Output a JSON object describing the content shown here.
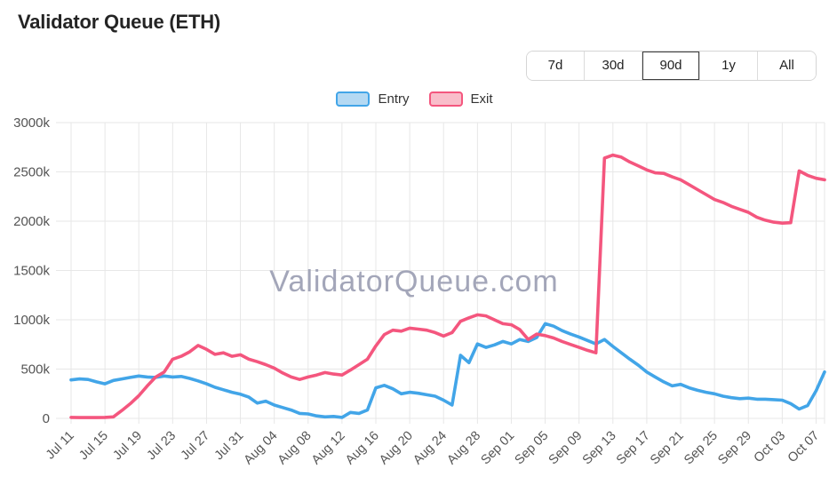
{
  "header": {
    "title": "Validator Queue (ETH)"
  },
  "time_range": {
    "options": [
      "7d",
      "30d",
      "90d",
      "1y",
      "All"
    ],
    "selected": "90d"
  },
  "watermark": "ValidatorQueue.com",
  "colors": {
    "entry_line": "#42a5e8",
    "entry_fill": "#b4d9f3",
    "exit_line": "#f4567e",
    "exit_fill": "#f9bdca",
    "grid": "#e7e7e7",
    "axis_text": "#545454",
    "watermark_text": "#9a9db2"
  },
  "chart_data": {
    "type": "line",
    "title": "Validator Queue (ETH)",
    "xlabel": "",
    "ylabel": "",
    "grid": true,
    "legend_position": "top-center",
    "x": {
      "start": "Jul 11",
      "end": "Oct 08",
      "step": "1 day",
      "tick_every": 4,
      "tick_labels": [
        "Jul 11",
        "Jul 15",
        "Jul 19",
        "Jul 23",
        "Jul 27",
        "Jul 31",
        "Aug 04",
        "Aug 08",
        "Aug 12",
        "Aug 16",
        "Aug 20",
        "Aug 24",
        "Aug 28",
        "Sep 01",
        "Sep 05",
        "Sep 09",
        "Sep 13",
        "Sep 17",
        "Sep 21",
        "Sep 25",
        "Sep 29",
        "Oct 03",
        "Oct 07"
      ]
    },
    "y": {
      "min_k": 0,
      "max_k": 3000,
      "ticks_k": [
        0,
        500,
        1000,
        1500,
        2000,
        2500,
        3000
      ],
      "tick_labels": [
        "0",
        "500k",
        "1000k",
        "1500k",
        "2000k",
        "2500k",
        "3000k"
      ]
    },
    "values_unit": "thousands of ETH",
    "series": [
      {
        "name": "Entry",
        "color": "#42a5e8",
        "fill": "#b4d9f3",
        "values_k": [
          390,
          400,
          395,
          370,
          350,
          385,
          400,
          415,
          430,
          420,
          415,
          430,
          420,
          425,
          405,
          380,
          350,
          315,
          290,
          265,
          245,
          215,
          155,
          175,
          135,
          110,
          85,
          50,
          45,
          25,
          15,
          20,
          10,
          60,
          50,
          85,
          310,
          335,
          300,
          250,
          265,
          255,
          240,
          225,
          185,
          135,
          640,
          565,
          755,
          720,
          745,
          780,
          755,
          800,
          780,
          820,
          960,
          935,
          890,
          855,
          825,
          790,
          755,
          800,
          730,
          665,
          600,
          540,
          470,
          420,
          370,
          330,
          345,
          310,
          285,
          265,
          250,
          225,
          210,
          200,
          205,
          195,
          195,
          190,
          185,
          150,
          95,
          130,
          280,
          470
        ]
      },
      {
        "name": "Exit",
        "color": "#f4567e",
        "fill": "#f9bdca",
        "values_k": [
          10,
          8,
          8,
          8,
          10,
          15,
          80,
          150,
          230,
          330,
          420,
          470,
          600,
          630,
          675,
          740,
          700,
          650,
          665,
          630,
          645,
          600,
          575,
          545,
          510,
          460,
          420,
          395,
          420,
          440,
          465,
          450,
          440,
          490,
          545,
          600,
          735,
          850,
          895,
          885,
          915,
          905,
          895,
          870,
          835,
          870,
          985,
          1020,
          1050,
          1040,
          1000,
          960,
          950,
          900,
          800,
          855,
          840,
          815,
          780,
          750,
          720,
          690,
          665,
          2640,
          2670,
          2650,
          2600,
          2560,
          2520,
          2490,
          2485,
          2450,
          2420,
          2370,
          2320,
          2270,
          2220,
          2190,
          2150,
          2120,
          2090,
          2040,
          2010,
          1990,
          1980,
          1985,
          2510,
          2465,
          2435,
          2420
        ]
      }
    ]
  }
}
